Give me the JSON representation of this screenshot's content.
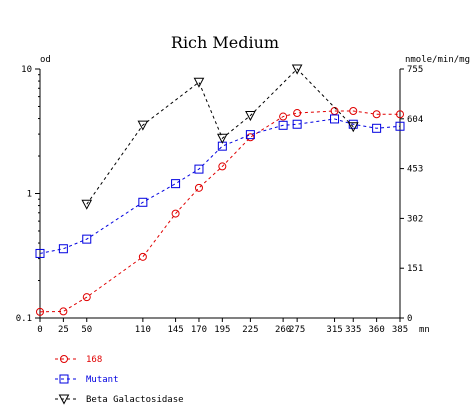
{
  "chart_data": {
    "type": "line",
    "title": "Rich Medium",
    "y_left_label": "od",
    "y_right_label": "nmole/min/mg",
    "x_unit_label": "mn",
    "x_ticks": [
      0,
      25,
      50,
      110,
      145,
      170,
      195,
      225,
      260,
      275,
      315,
      335,
      360,
      385
    ],
    "x_tick_labels": [
      "0",
      "25",
      "50",
      "110",
      "145",
      "170",
      "195",
      "225",
      "260",
      "275",
      "315",
      "335",
      "360",
      "385"
    ],
    "y_left_scale": "log",
    "y_left_lim": [
      0.1,
      10
    ],
    "y_left_ticks": [
      "10",
      "1",
      "0.1"
    ],
    "y_right_lim": [
      0,
      755
    ],
    "y_right_ticks": [
      "755",
      "604",
      "453",
      "302",
      "151",
      "0"
    ],
    "grid": false,
    "legend_position": "bottom-left",
    "series": [
      {
        "name": "168",
        "axis": "left",
        "color": "#e00000",
        "marker": "circle",
        "x": [
          0,
          25,
          50,
          110,
          145,
          170,
          195,
          225,
          260,
          275,
          315,
          335,
          360,
          385
        ],
        "y": [
          0.112,
          0.113,
          0.147,
          0.31,
          0.69,
          1.11,
          1.65,
          2.83,
          4.15,
          4.43,
          4.6,
          4.6,
          4.33,
          4.33
        ]
      },
      {
        "name": "Mutant",
        "axis": "left",
        "color": "#0000e0",
        "marker": "square",
        "x": [
          0,
          25,
          50,
          110,
          145,
          170,
          195,
          225,
          260,
          275,
          315,
          335,
          360,
          385
        ],
        "y": [
          0.33,
          0.36,
          0.43,
          0.85,
          1.2,
          1.57,
          2.4,
          2.97,
          3.53,
          3.6,
          3.97,
          3.6,
          3.34,
          3.47
        ]
      },
      {
        "name": "Beta Galactosidase",
        "axis": "right",
        "color": "#000000",
        "marker": "triangle-down",
        "x": [
          50,
          110,
          170,
          195,
          225,
          275,
          335
        ],
        "y": [
          345,
          585,
          715,
          545,
          614,
          755,
          580
        ]
      }
    ]
  }
}
